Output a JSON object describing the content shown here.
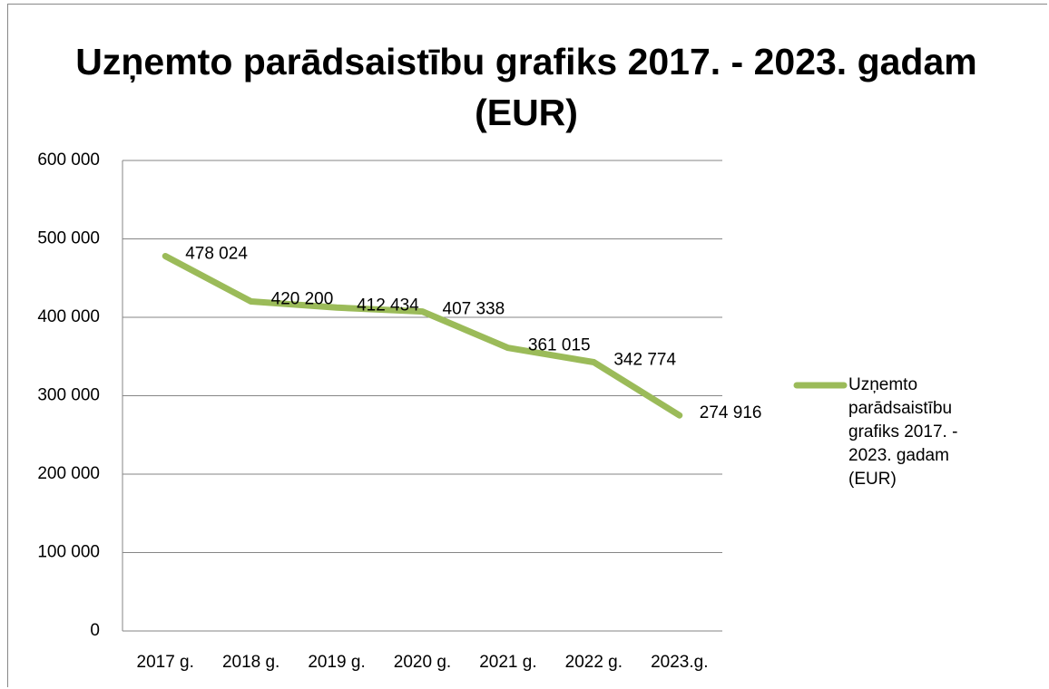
{
  "chart_data": {
    "type": "line",
    "title": "Uzņemto parādsaistību grafiks  2017. - 2023. gadam (EUR)",
    "categories": [
      "2017 g.",
      "2018 g.",
      "2019 g.",
      "2020 g.",
      "2021 g.",
      "2022 g.",
      "2023.g."
    ],
    "series": [
      {
        "name": "Uzņemto parādsaistību grafiks  2017. - 2023. gadam (EUR)",
        "color": "#9bbb59",
        "values": [
          478024,
          420200,
          412434,
          407338,
          361015,
          342774,
          274916
        ],
        "value_labels": [
          "478 024",
          "420 200",
          "412 434",
          "407 338",
          "361 015",
          "342 774",
          "274 916"
        ]
      }
    ],
    "ylim": [
      0,
      600000
    ],
    "yticks": [
      0,
      {
        "value": 100000,
        "label": "100 000"
      },
      {
        "value": 200000,
        "label": "200 000"
      },
      {
        "value": 300000,
        "label": "300 000"
      },
      {
        "value": 400000,
        "label": "400 000"
      },
      {
        "value": 500000,
        "label": "500 000"
      },
      {
        "value": 600000,
        "label": "600 000"
      }
    ],
    "grid": true,
    "legend": "right"
  }
}
